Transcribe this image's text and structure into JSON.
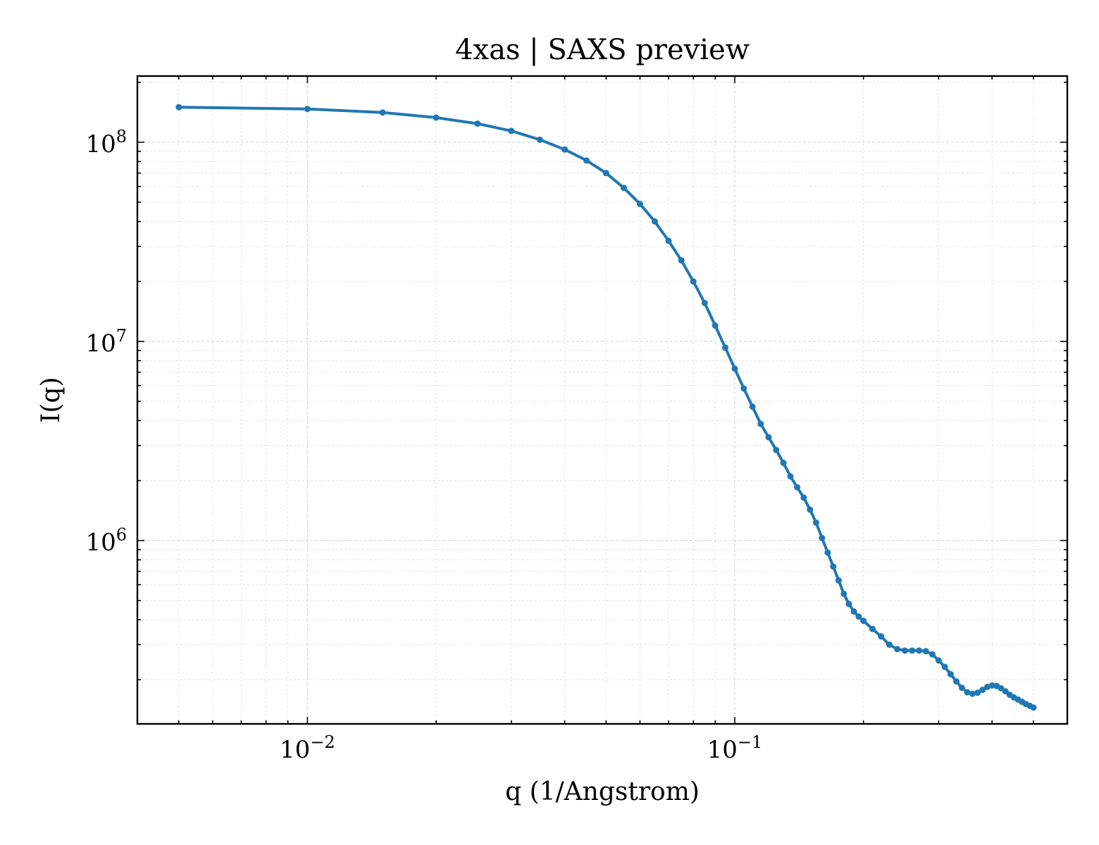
{
  "chart_data": {
    "type": "line",
    "title": "4xas | SAXS preview",
    "xlabel": "q (1/Angstrom)",
    "ylabel": "I(q)",
    "xscale": "log",
    "yscale": "log",
    "xlim": [
      0.004,
      0.6
    ],
    "ylim": [
      120000,
      215000000
    ],
    "grid": true,
    "series_color": "#1f77b4",
    "x_ticks": [
      {
        "value": 0.01,
        "base": "10",
        "exp": "−2"
      },
      {
        "value": 0.1,
        "base": "10",
        "exp": "−1"
      }
    ],
    "y_ticks": [
      {
        "value": 1000000,
        "base": "10",
        "exp": "6"
      },
      {
        "value": 10000000,
        "base": "10",
        "exp": "7"
      },
      {
        "value": 100000000,
        "base": "10",
        "exp": "8"
      }
    ],
    "series": [
      {
        "x": [
          0.005,
          0.01,
          0.015,
          0.02,
          0.025,
          0.03,
          0.035,
          0.04,
          0.045,
          0.05,
          0.055,
          0.06,
          0.065,
          0.07,
          0.075,
          0.08,
          0.085,
          0.09,
          0.095,
          0.1,
          0.105,
          0.11,
          0.115,
          0.12,
          0.125,
          0.13,
          0.135,
          0.14,
          0.145,
          0.15,
          0.155,
          0.16,
          0.165,
          0.17,
          0.175,
          0.18,
          0.185,
          0.19,
          0.195,
          0.2,
          0.21,
          0.22,
          0.23,
          0.24,
          0.25,
          0.26,
          0.27,
          0.28,
          0.29,
          0.3,
          0.31,
          0.32,
          0.33,
          0.34,
          0.35,
          0.36,
          0.37,
          0.38,
          0.39,
          0.4,
          0.41,
          0.42,
          0.43,
          0.44,
          0.45,
          0.46,
          0.47,
          0.48,
          0.49,
          0.5
        ],
        "y": [
          150000000,
          147000000,
          141000000,
          133000000,
          124000000,
          114000000,
          103000000,
          92000000,
          81000000,
          70000000,
          59000000,
          49000000,
          40000000,
          32000000,
          25500000,
          20000000,
          15600000,
          12000000,
          9300000,
          7300000,
          5800000,
          4700000,
          3850000,
          3300000,
          2850000,
          2450000,
          2100000,
          1850000,
          1640000,
          1430000,
          1230000,
          1030000,
          870000,
          740000,
          630000,
          540000,
          480000,
          440000,
          415000,
          395000,
          360000,
          330000,
          300000,
          285000,
          280000,
          280000,
          280000,
          278000,
          268000,
          250000,
          232000,
          213000,
          196000,
          182000,
          173000,
          170000,
          172000,
          178000,
          184000,
          187000,
          186000,
          181000,
          175000,
          168000,
          163000,
          159000,
          155000,
          151000,
          148000,
          145000
        ]
      }
    ]
  }
}
